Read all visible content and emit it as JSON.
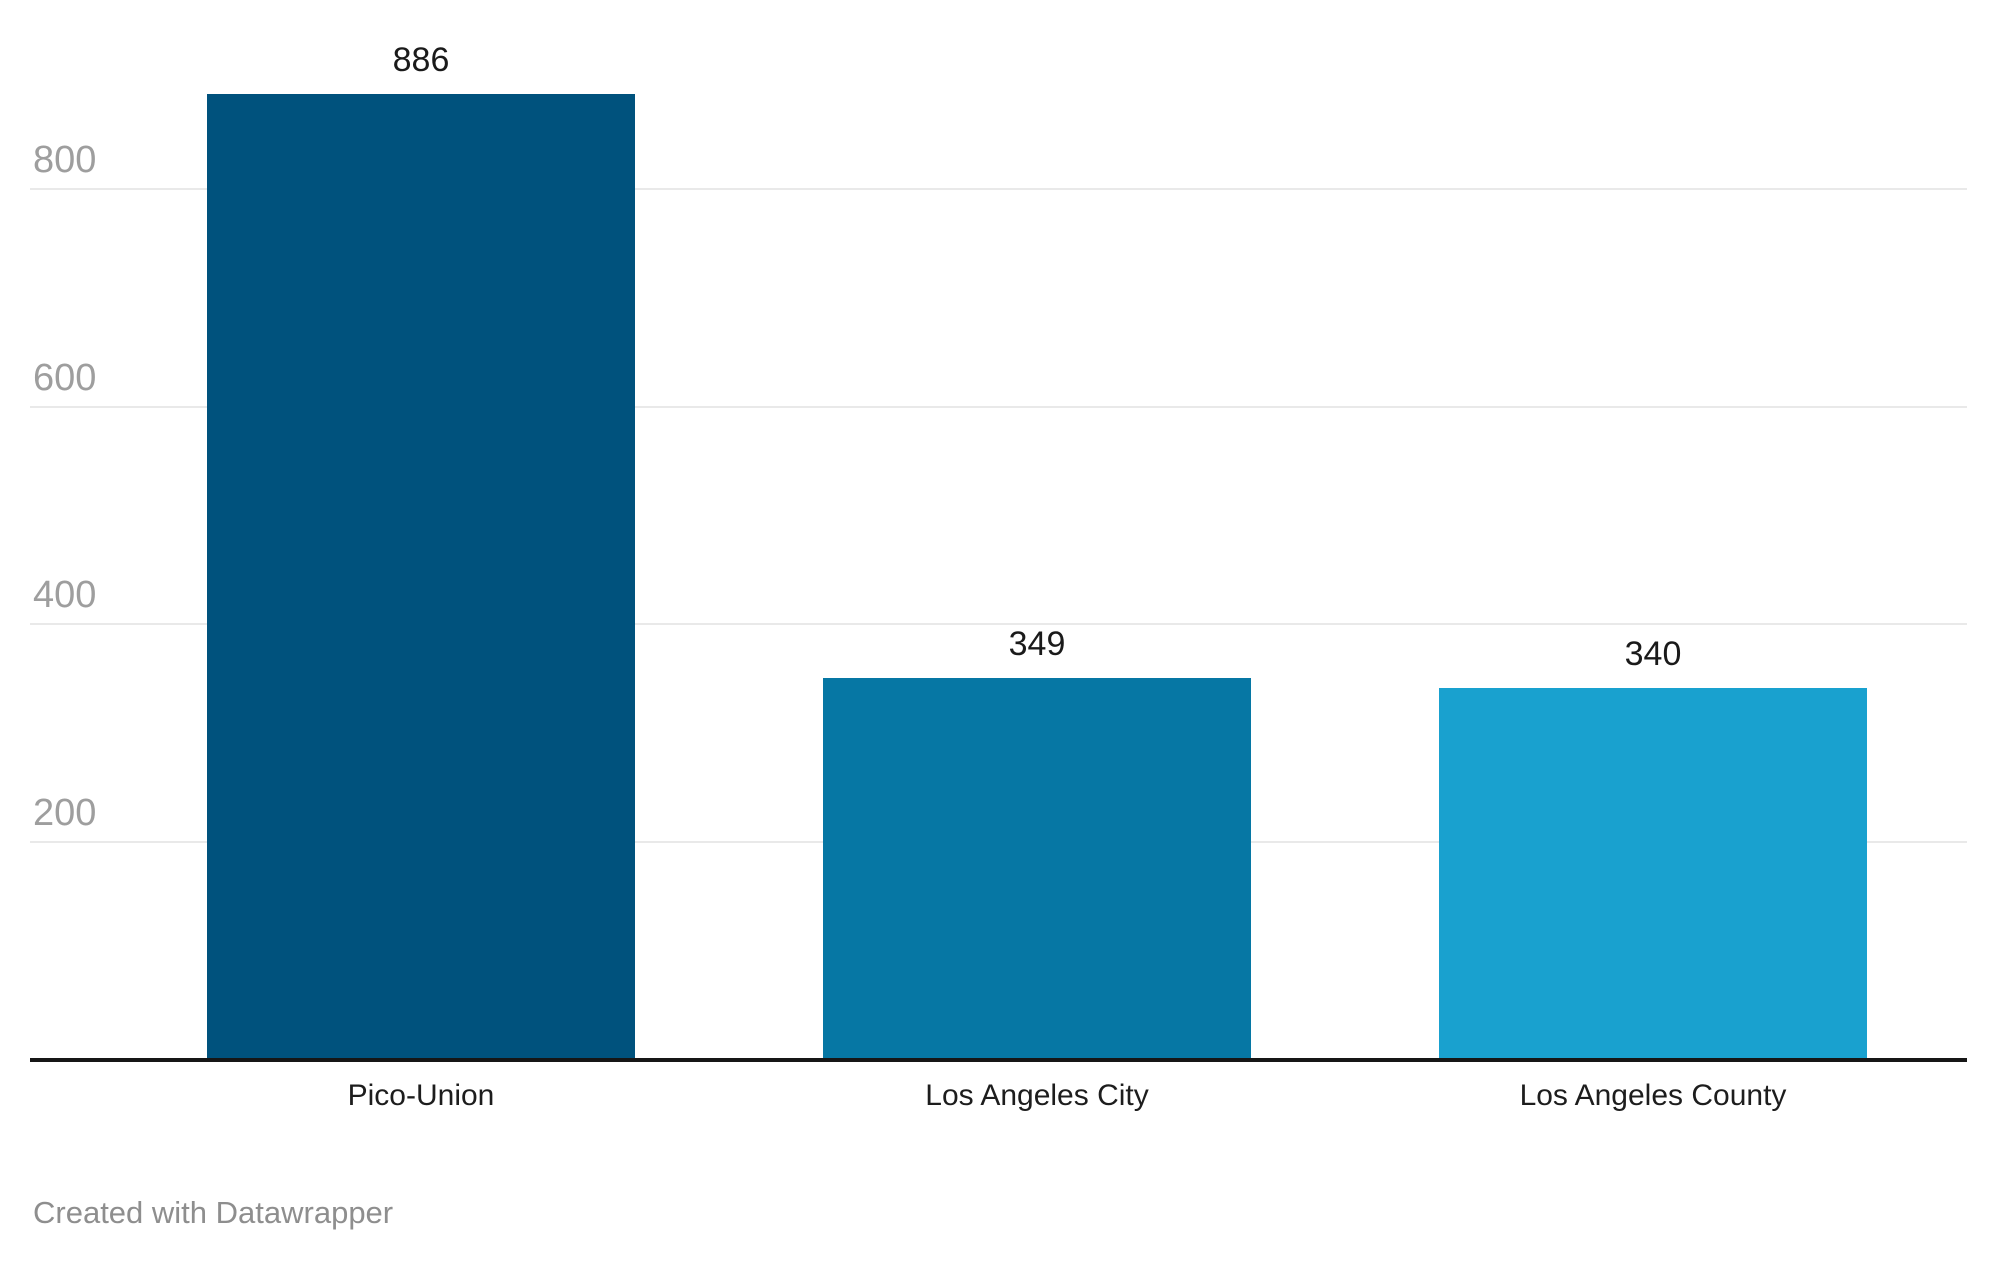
{
  "chart_data": {
    "type": "bar",
    "title": "",
    "xlabel": "",
    "ylabel": "",
    "categories": [
      "Pico-Union",
      "Los Angeles City",
      "Los Angeles County"
    ],
    "values": [
      886,
      349,
      340
    ],
    "value_labels": [
      "886",
      "349",
      "340"
    ],
    "bar_colors": [
      "#00527d",
      "#0677a4",
      "#19a1cf"
    ],
    "yticks": [
      200,
      400,
      600,
      800
    ],
    "ytick_labels": [
      "200",
      "400",
      "600",
      "800"
    ],
    "ylim": [
      0,
      935
    ],
    "grid": true,
    "legend": "none"
  },
  "colors": {
    "background": "#ffffff",
    "gridline": "#e9e9e9",
    "axis_line": "#161616",
    "tick_label": "#9e9e9e",
    "value_label": "#1a1a1a",
    "category_label": "#1d1d1d",
    "credit_text": "#8e8e8e"
  },
  "footer": {
    "credit": "Created with Datawrapper"
  }
}
